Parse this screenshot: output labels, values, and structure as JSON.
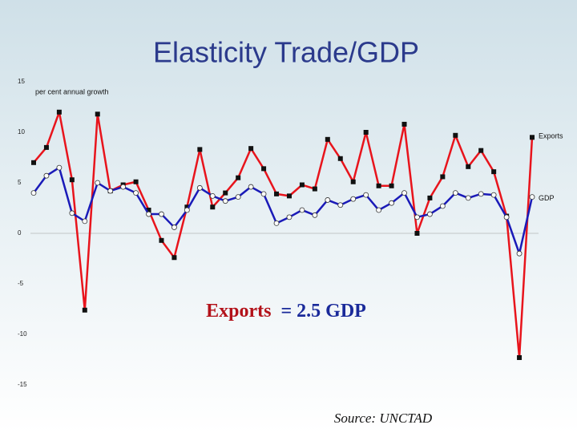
{
  "chart_data": {
    "type": "line",
    "title": "Elasticity Trade/GDP",
    "y_axis_label": "per cent annual growth",
    "categories": [
      null,
      null,
      null,
      null,
      null,
      null,
      null,
      null,
      null,
      null,
      null,
      null,
      null,
      null,
      null,
      null,
      null,
      null,
      null,
      null,
      null,
      null,
      null,
      null,
      null,
      null,
      null,
      null,
      null,
      null,
      null,
      null,
      null,
      null,
      null,
      null,
      null,
      null,
      null,
      null
    ],
    "series": [
      {
        "name": "Exports",
        "color": "#e8141c",
        "marker": "square",
        "values": [
          7.0,
          8.5,
          12.0,
          5.3,
          -7.6,
          11.8,
          4.2,
          4.8,
          5.1,
          2.3,
          -0.7,
          -2.4,
          2.6,
          8.3,
          2.6,
          4.0,
          5.5,
          8.4,
          6.4,
          3.9,
          3.7,
          4.8,
          4.4,
          9.3,
          7.4,
          5.1,
          10.0,
          4.7,
          4.7,
          10.8,
          0.0,
          3.5,
          5.6,
          9.7,
          6.6,
          8.2,
          6.1,
          1.7,
          -12.3,
          9.5
        ]
      },
      {
        "name": "GDP",
        "color": "#1a1ab8",
        "marker": "circle",
        "values": [
          4.0,
          5.7,
          6.5,
          2.0,
          1.2,
          5.0,
          4.2,
          4.6,
          4.0,
          1.9,
          1.9,
          0.6,
          2.3,
          4.5,
          3.7,
          3.2,
          3.6,
          4.6,
          3.9,
          1.0,
          1.6,
          2.3,
          1.8,
          3.3,
          2.8,
          3.4,
          3.8,
          2.3,
          3.0,
          4.0,
          1.6,
          1.9,
          2.7,
          4.0,
          3.5,
          3.9,
          3.8,
          1.6,
          -2.0,
          3.6
        ]
      }
    ],
    "ylim": [
      -15,
      15
    ],
    "yticks": [
      -15,
      -10,
      -5,
      0,
      5,
      10,
      15
    ],
    "annotation": [
      "Exports",
      "= 2.5 GDP"
    ],
    "source": "Source: UNCTAD"
  }
}
